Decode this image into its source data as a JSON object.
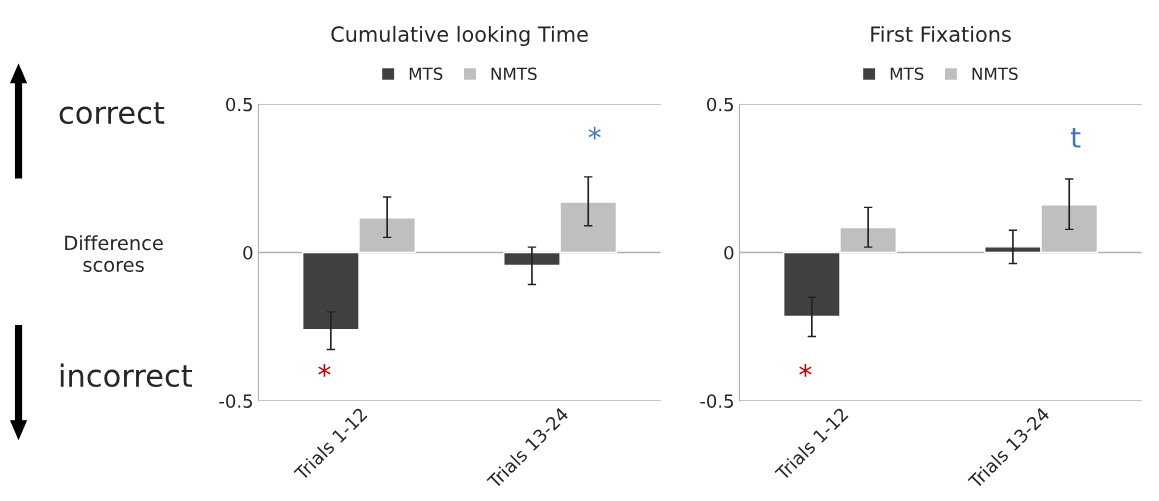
{
  "chart_data": [
    {
      "type": "bar",
      "title": "Cumulative looking Time",
      "ylabel": "Difference scores",
      "categories": [
        "Trials 1-12",
        "Trials 13-24"
      ],
      "series": [
        {
          "name": "MTS",
          "color": "#404040",
          "values": [
            -0.26,
            -0.044
          ],
          "errors": [
            [
              -0.327,
              -0.2
            ],
            [
              -0.108,
              0.018
            ]
          ]
        },
        {
          "name": "NMTS",
          "color": "#bfbfbf",
          "values": [
            0.117,
            0.17
          ],
          "errors": [
            [
              0.051,
              0.187
            ],
            [
              0.09,
              0.255
            ]
          ]
        }
      ],
      "ylim": [
        -0.5,
        0.5
      ],
      "yticks": [
        {
          "value": -0.5,
          "label": "-0.5"
        },
        0,
        0.5
      ],
      "grid": "y",
      "legend": "top",
      "annotations": [
        "*",
        "*",
        "correct",
        "incorrect"
      ]
    },
    {
      "type": "bar",
      "title": "First Fixations",
      "categories": [
        "Trials 1-12",
        "Trials 13-24"
      ],
      "series": [
        {
          "name": "MTS",
          "color": "#404040",
          "values": [
            -0.216,
            0.019
          ],
          "errors": [
            [
              -0.283,
              -0.151
            ],
            [
              -0.037,
              0.075
            ]
          ]
        },
        {
          "name": "NMTS",
          "color": "#bfbfbf",
          "values": [
            0.084,
            0.161
          ],
          "errors": [
            [
              0.018,
              0.152
            ],
            [
              0.078,
              0.248
            ]
          ]
        }
      ],
      "ylim": [
        -0.5,
        0.5
      ],
      "yticks": [
        {
          "value": -0.5,
          "label": "-0.5"
        },
        0,
        0.5
      ],
      "grid": "y",
      "legend": "top",
      "annotations": [
        "*",
        "t"
      ]
    }
  ]
}
